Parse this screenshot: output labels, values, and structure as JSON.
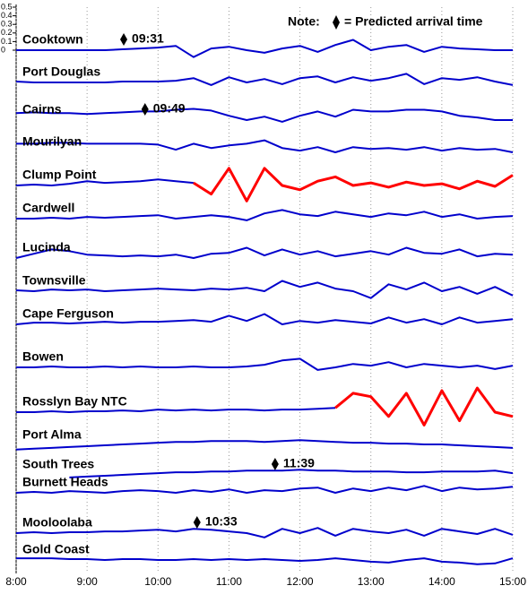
{
  "chart_data": {
    "type": "line",
    "note_prefix": "Note:",
    "note_suffix": "= Predicted arrival time",
    "x": [
      8,
      8.25,
      8.5,
      8.75,
      9,
      9.25,
      9.5,
      9.75,
      10,
      10.25,
      10.5,
      10.75,
      11,
      11.25,
      11.5,
      11.75,
      12,
      12.25,
      12.5,
      12.75,
      13,
      13.25,
      13.5,
      13.75,
      14,
      14.25,
      14.5,
      14.75,
      15
    ],
    "xlim": [
      8,
      15
    ],
    "xticks": [
      {
        "value": 8,
        "label": "8:00"
      },
      {
        "value": 9,
        "label": "9:00"
      },
      {
        "value": 10,
        "label": "10:00"
      },
      {
        "value": 11,
        "label": "11:00"
      },
      {
        "value": 12,
        "label": "12:00"
      },
      {
        "value": 13,
        "label": "13:00"
      },
      {
        "value": 14,
        "label": "14:00"
      },
      {
        "value": 15,
        "label": "15:00"
      }
    ],
    "ylim": [
      0,
      0.5
    ],
    "yticks": [
      0,
      0.1,
      0.2,
      0.3,
      0.4,
      0.5
    ],
    "grid": true,
    "series": [
      {
        "name": "Cooktown",
        "color": "#0000cc",
        "arrival": "09:31",
        "values": [
          0,
          0,
          0,
          0,
          0,
          0,
          0.01,
          0.02,
          0.03,
          0.05,
          -0.08,
          0.02,
          0.04,
          0,
          -0.03,
          0.02,
          0.05,
          -0.02,
          0.06,
          0.12,
          0,
          0.04,
          0.06,
          -0.02,
          0.04,
          0.02,
          0.01,
          0,
          0
        ]
      },
      {
        "name": "Port Douglas",
        "color": "#0000cc",
        "values": [
          0.01,
          0,
          0,
          0,
          0,
          0,
          0.01,
          0.01,
          0.01,
          0.02,
          0.05,
          -0.03,
          0.06,
          0,
          0.04,
          -0.02,
          0.05,
          0.07,
          0,
          0.06,
          0.02,
          0.05,
          0.1,
          -0.02,
          0.05,
          0.03,
          0.06,
          0.01,
          -0.03
        ]
      },
      {
        "name": "Cairns",
        "color": "#0000cc",
        "arrival": "09:49",
        "values": [
          0.08,
          0.09,
          0.08,
          0.08,
          0.07,
          0.08,
          0.09,
          0.1,
          0.1,
          0.12,
          0.13,
          0.11,
          0.05,
          0,
          0.04,
          -0.02,
          0.05,
          0.1,
          0.04,
          0.12,
          0.1,
          0.1,
          0.12,
          0.12,
          0.1,
          0.05,
          0.03,
          0,
          0
        ]
      },
      {
        "name": "Mourilyan",
        "color": "#0000cc",
        "values": [
          0.1,
          0.1,
          0.11,
          0.11,
          0.1,
          0.1,
          0.1,
          0.1,
          0.09,
          0.03,
          0.1,
          0.05,
          0.08,
          0.1,
          0.14,
          0.05,
          0.02,
          0.06,
          0,
          0.06,
          0.04,
          0.05,
          0.03,
          0.06,
          0.02,
          0.05,
          0.03,
          0.04,
          0
        ]
      },
      {
        "name": "Clump Point",
        "color": "#0000cc",
        "values": [
          0,
          0.01,
          0,
          0.02,
          0.05,
          0.03,
          0.04,
          0.05,
          0.07,
          0.05,
          0.03,
          null,
          null,
          null,
          null,
          null,
          null,
          null,
          null,
          null,
          null,
          null,
          null,
          null,
          null,
          null,
          null,
          null,
          null
        ],
        "alert": {
          "color": "#ff0000",
          "values": [
            null,
            null,
            null,
            null,
            null,
            null,
            null,
            null,
            null,
            null,
            0.03,
            -0.1,
            0.2,
            -0.18,
            0.2,
            0,
            -0.05,
            0.05,
            0.1,
            0,
            0.03,
            -0.02,
            0.04,
            0,
            0.02,
            -0.04,
            0.05,
            -0.01,
            0.12
          ]
        }
      },
      {
        "name": "Cardwell",
        "color": "#0000cc",
        "values": [
          0,
          0,
          0.01,
          0,
          0.02,
          0.01,
          0.02,
          0.03,
          0.04,
          0,
          0.02,
          0.04,
          0.02,
          -0.02,
          0.06,
          0.1,
          0.05,
          0.03,
          0.08,
          0.05,
          0.02,
          0.06,
          0.04,
          0.08,
          0.02,
          0.05,
          0,
          0.02,
          0.03
        ]
      },
      {
        "name": "Lucinda",
        "color": "#0000cc",
        "values": [
          0,
          0.05,
          0.1,
          0.08,
          0.04,
          0.03,
          0.02,
          0.03,
          0.02,
          0.04,
          0,
          0.05,
          0.06,
          0.12,
          0.03,
          0.1,
          0.04,
          0.08,
          0.02,
          0.05,
          0.08,
          0.04,
          0.12,
          0.06,
          0.05,
          0.1,
          0.02,
          0.05,
          0.04
        ]
      },
      {
        "name": "Townsville",
        "color": "#0000cc",
        "values": [
          0.01,
          0,
          0.02,
          0.01,
          0.02,
          0,
          0.01,
          0.02,
          0.03,
          0.02,
          0.01,
          0.03,
          0.02,
          0.04,
          0,
          0.12,
          0.05,
          0.1,
          0.03,
          0,
          -0.08,
          0.08,
          0.02,
          0.1,
          0,
          0.05,
          -0.03,
          0.05,
          -0.05
        ]
      },
      {
        "name": "Cape Ferguson",
        "color": "#0000cc",
        "values": [
          0,
          0.02,
          0.02,
          0.01,
          0.02,
          0.03,
          0.02,
          0.03,
          0.03,
          0.04,
          0.05,
          0.03,
          0.1,
          0.04,
          0.12,
          0,
          0.04,
          0.02,
          0.05,
          0.03,
          0.01,
          0.08,
          0.02,
          0.06,
          0,
          0.08,
          0.02,
          0.04,
          0.06
        ]
      },
      {
        "name": "Bowen",
        "color": "#0000cc",
        "values": [
          0,
          0,
          0.01,
          0,
          0,
          0.01,
          0,
          0.01,
          0,
          0,
          0.01,
          0,
          0,
          0.01,
          0.03,
          0.08,
          0.1,
          -0.03,
          0,
          0.04,
          0.02,
          0.06,
          0,
          0.04,
          0.02,
          0,
          0.02,
          -0.02,
          0.02
        ]
      },
      {
        "name": "Rosslyn Bay NTC",
        "color": "#0000cc",
        "values": [
          0,
          0,
          0.01,
          0,
          0.01,
          0.01,
          0.02,
          0.01,
          0.03,
          0.02,
          0.03,
          0.02,
          0.03,
          0.03,
          0.02,
          0.03,
          0.03,
          0.04,
          0.05,
          null,
          null,
          null,
          null,
          null,
          null,
          null,
          null,
          null,
          null
        ],
        "alert": {
          "color": "#ff0000",
          "values": [
            null,
            null,
            null,
            null,
            null,
            null,
            null,
            null,
            null,
            null,
            null,
            null,
            null,
            null,
            null,
            null,
            null,
            null,
            0.05,
            0.22,
            0.18,
            -0.05,
            0.22,
            -0.15,
            0.25,
            -0.1,
            0.28,
            0,
            -0.05
          ]
        }
      },
      {
        "name": "Port Alma",
        "color": "#0000cc",
        "values": [
          -0.05,
          -0.04,
          -0.03,
          -0.02,
          -0.01,
          0,
          0.01,
          0.02,
          0.03,
          0.04,
          0.04,
          0.05,
          0.05,
          0.05,
          0.04,
          0.05,
          0.06,
          0.05,
          0.04,
          0.03,
          0.03,
          0.02,
          0.02,
          0.01,
          0.01,
          0,
          -0.01,
          -0.02,
          -0.03
        ]
      },
      {
        "name": "South Trees",
        "color": "#0000cc",
        "arrival": "11:39",
        "values": [
          null,
          null,
          null,
          -0.03,
          -0.02,
          -0.01,
          0,
          0.01,
          0.02,
          0.03,
          0.03,
          0.04,
          0.04,
          0.05,
          0.05,
          0.05,
          0.06,
          0.05,
          0.05,
          0.04,
          0.04,
          0.04,
          0.03,
          0.03,
          0.04,
          0.04,
          0.04,
          0.05,
          0.02
        ]
      },
      {
        "name": "Burnett Heads",
        "color": "#0000cc",
        "values": [
          0,
          0.01,
          0,
          0.02,
          0.01,
          0,
          0.02,
          0.03,
          0.02,
          0,
          0.03,
          0.01,
          0.04,
          0,
          0.03,
          0.02,
          0.05,
          0.06,
          0,
          0.05,
          0.02,
          0.06,
          0.03,
          0.08,
          0.02,
          0.06,
          0.04,
          0.05,
          0.07
        ]
      },
      {
        "name": "Mooloolaba",
        "color": "#0000cc",
        "arrival": "10:33",
        "values": [
          0,
          0.01,
          0,
          0.01,
          0.01,
          0.02,
          0.02,
          0.03,
          0.04,
          0.02,
          0.05,
          0.04,
          0.02,
          0,
          -0.05,
          0.05,
          0,
          0.06,
          -0.03,
          0.05,
          0.02,
          0,
          0.04,
          -0.03,
          0.05,
          0.02,
          -0.01,
          0.05,
          -0.02
        ]
      },
      {
        "name": "Gold Coast",
        "color": "#0000cc",
        "values": [
          0.02,
          0.02,
          0.02,
          0.01,
          0.01,
          0,
          0.01,
          0.01,
          0,
          0,
          0.01,
          0,
          0.01,
          0,
          0.01,
          0,
          -0.01,
          0,
          0.02,
          0,
          -0.02,
          -0.03,
          0,
          0.02,
          -0.02,
          -0.03,
          -0.05,
          -0.04,
          0.02
        ]
      }
    ]
  }
}
